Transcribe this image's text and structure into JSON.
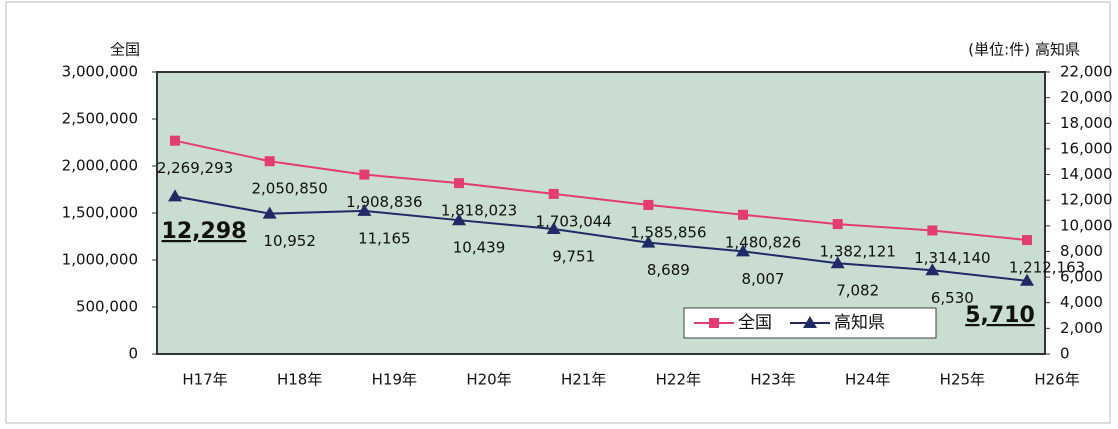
{
  "chart_data": {
    "type": "line",
    "y_axis_label": "全国",
    "y2_axis_label": "高知県",
    "unit_note": "(単位:件)",
    "categories": [
      "H17年",
      "H18年",
      "H19年",
      "H20年",
      "H21年",
      "H22年",
      "H23年",
      "H24年",
      "H25年",
      "H26年"
    ],
    "series": [
      {
        "name": "全国",
        "color": "#e23c72",
        "marker": "square",
        "values": [
          2269293,
          2050850,
          1908836,
          1818023,
          1703044,
          1585856,
          1480826,
          1382121,
          1314140,
          1212163
        ],
        "value_labels": [
          "2,269,293",
          "2,050,850",
          "1,908,836",
          "1,818,023",
          "1,703,044",
          "1,585,856",
          "1,480,826",
          "1,382,121",
          "1,314,140",
          "1,212,163"
        ]
      },
      {
        "name": "高知県",
        "color": "#1f2a66",
        "marker": "triangle",
        "axis": "y2",
        "values": [
          12298,
          10952,
          11165,
          10439,
          9751,
          8689,
          8007,
          7082,
          6530,
          5710
        ],
        "value_labels": [
          "12,298",
          "10,952",
          "11,165",
          "10,439",
          "9,751",
          "8,689",
          "8,007",
          "7,082",
          "6,530",
          "5,710"
        ]
      }
    ],
    "ylim": [
      0,
      3000000
    ],
    "yticks": [
      0,
      {
        "value": 500000,
        "label": "500,000"
      },
      {
        "value": 1000000,
        "label": "1,000,000"
      },
      {
        "value": 1500000,
        "label": "1,500,000"
      },
      {
        "value": 2000000,
        "label": "2,000,000"
      },
      {
        "value": 2500000,
        "label": "2,500,000"
      },
      {
        "value": 3000000,
        "label": "3,000,000"
      }
    ],
    "y2lim": [
      0,
      22000
    ],
    "y2ticks": [
      0,
      {
        "value": 2000,
        "label": "2,000"
      },
      {
        "value": 4000,
        "label": "4,000"
      },
      {
        "value": 6000,
        "label": "6,000"
      },
      {
        "value": 8000,
        "label": "8,000"
      },
      {
        "value": 10000,
        "label": "10,000"
      },
      {
        "value": 12000,
        "label": "12,000"
      },
      {
        "value": 14000,
        "label": "14,000"
      },
      {
        "value": 16000,
        "label": "16,000"
      },
      {
        "value": 18000,
        "label": "18,000"
      },
      {
        "value": 20000,
        "label": "20,000"
      },
      {
        "value": 22000,
        "label": "22,000"
      }
    ],
    "legend": "lower right",
    "background": "#c9ddd0"
  }
}
